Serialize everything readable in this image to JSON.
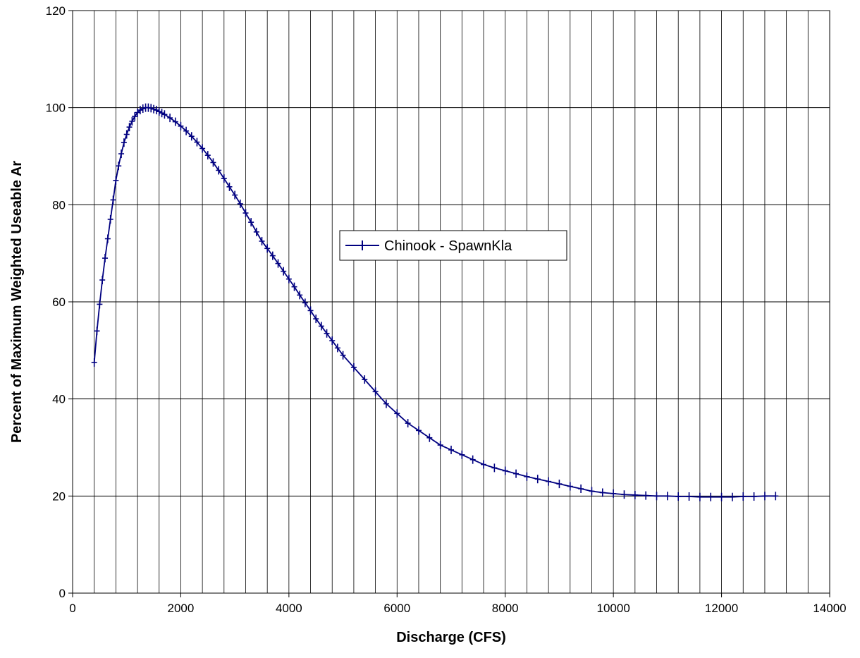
{
  "chart_data": {
    "type": "line",
    "title": "",
    "xlabel": "Discharge (CFS)",
    "ylabel": "Percent of Maximum Weighted Useable Ar",
    "xlim": [
      0,
      14000
    ],
    "ylim": [
      0,
      120
    ],
    "x_ticks": [
      0,
      2000,
      4000,
      6000,
      8000,
      10000,
      12000,
      14000
    ],
    "y_ticks": [
      0,
      20,
      40,
      60,
      80,
      100,
      120
    ],
    "x_minor_step": 400,
    "grid": "vertical lines every 400, horizontal lines every 20",
    "legend_position": "center",
    "colors": {
      "series": "#000080",
      "grid": "#000000",
      "background": "#ffffff"
    },
    "series": [
      {
        "name": "Chinook - SpawnKla",
        "marker": "plus",
        "x": [
          400,
          450,
          500,
          550,
          600,
          650,
          700,
          750,
          800,
          850,
          900,
          950,
          1000,
          1050,
          1100,
          1150,
          1200,
          1250,
          1300,
          1350,
          1400,
          1450,
          1500,
          1550,
          1600,
          1650,
          1700,
          1800,
          1900,
          2000,
          2100,
          2200,
          2300,
          2400,
          2500,
          2600,
          2700,
          2800,
          2900,
          3000,
          3100,
          3200,
          3300,
          3400,
          3500,
          3600,
          3700,
          3800,
          3900,
          4000,
          4100,
          4200,
          4300,
          4400,
          4500,
          4600,
          4700,
          4800,
          4900,
          5000,
          5200,
          5400,
          5600,
          5800,
          6000,
          6200,
          6400,
          6600,
          6800,
          7000,
          7200,
          7400,
          7600,
          7800,
          8000,
          8200,
          8400,
          8600,
          8800,
          9000,
          9200,
          9400,
          9600,
          9800,
          10000,
          10200,
          10400,
          10600,
          10800,
          11000,
          11200,
          11400,
          11600,
          11800,
          12000,
          12200,
          12400,
          12600,
          12800,
          13000
        ],
        "y": [
          47.5,
          54.0,
          59.5,
          64.5,
          69.0,
          73.0,
          77.0,
          81.0,
          85.0,
          88.0,
          90.5,
          92.8,
          94.5,
          96.0,
          97.2,
          98.2,
          99.0,
          99.5,
          99.8,
          100.0,
          100.0,
          99.9,
          99.7,
          99.5,
          99.2,
          98.9,
          98.6,
          97.9,
          97.1,
          96.2,
          95.2,
          94.1,
          92.9,
          91.6,
          90.2,
          88.7,
          87.1,
          85.4,
          83.7,
          82.0,
          80.2,
          78.3,
          76.4,
          74.4,
          72.5,
          71.0,
          69.5,
          67.9,
          66.3,
          64.7,
          63.1,
          61.4,
          59.8,
          58.2,
          56.5,
          55.0,
          53.5,
          52.0,
          50.5,
          49.0,
          46.5,
          44.0,
          41.5,
          39.0,
          37.0,
          35.0,
          33.5,
          32.0,
          30.5,
          29.5,
          28.5,
          27.5,
          26.5,
          25.8,
          25.2,
          24.6,
          24.0,
          23.5,
          23.0,
          22.5,
          22.0,
          21.5,
          21.0,
          20.7,
          20.5,
          20.3,
          20.2,
          20.1,
          20.0,
          20.0,
          19.9,
          19.9,
          19.8,
          19.8,
          19.8,
          19.8,
          19.9,
          19.9,
          20.0,
          20.0
        ]
      }
    ]
  }
}
